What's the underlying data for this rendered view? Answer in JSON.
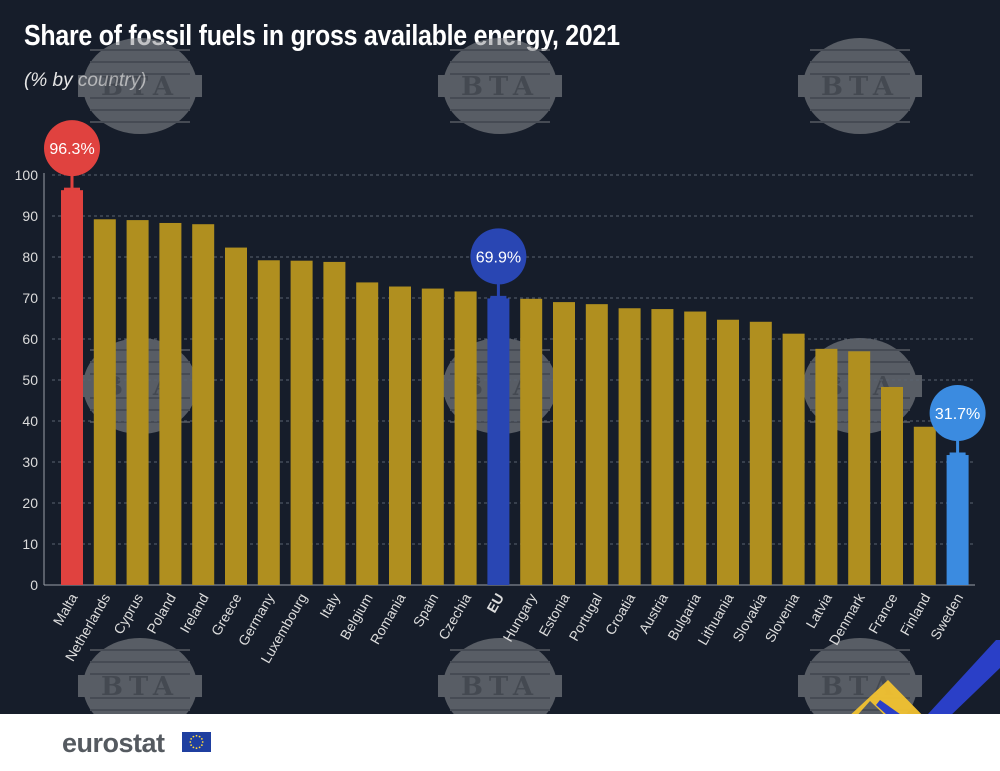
{
  "title": "Share of fossil fuels in gross available energy, 2021",
  "subtitle": "(% by country)",
  "brand": "eurostat",
  "watermark_text": "BTA",
  "colors": {
    "background": "#161d2a",
    "bar_default": "#b08f1f",
    "bar_max": "#e0423f",
    "bar_eu": "#2946b3",
    "bar_min": "#3b8be0",
    "axis_text": "#dcdcdc",
    "grid": "#5a6270"
  },
  "chart_data": {
    "type": "bar",
    "categories": [
      "Malta",
      "Netherlands",
      "Cyprus",
      "Poland",
      "Ireland",
      "Greece",
      "Germany",
      "Luxembourg",
      "Italy",
      "Belgium",
      "Romania",
      "Spain",
      "Czechia",
      "EU",
      "Hungary",
      "Estonia",
      "Portugal",
      "Croatia",
      "Austria",
      "Bulgaria",
      "Lithuania",
      "Slovakia",
      "Slovenia",
      "Latvia",
      "Denmark",
      "France",
      "Finland",
      "Sweden"
    ],
    "values": [
      96.3,
      89.2,
      89.0,
      88.3,
      88.0,
      82.3,
      79.2,
      79.1,
      78.8,
      73.8,
      72.8,
      72.3,
      71.6,
      69.9,
      69.8,
      69.0,
      68.5,
      67.5,
      67.3,
      66.7,
      64.7,
      64.2,
      61.3,
      57.6,
      57.0,
      48.3,
      38.6,
      31.7
    ],
    "highlights": [
      {
        "category": "Malta",
        "label": "96.3%",
        "color_key": "bar_max"
      },
      {
        "category": "EU",
        "label": "69.9%",
        "color_key": "bar_eu"
      },
      {
        "category": "Sweden",
        "label": "31.7%",
        "color_key": "bar_min"
      }
    ],
    "bold_categories": [
      "EU"
    ],
    "yticks": [
      0,
      10,
      20,
      30,
      40,
      50,
      60,
      70,
      80,
      90,
      100
    ],
    "ylim": [
      0,
      100
    ],
    "grid": true
  }
}
